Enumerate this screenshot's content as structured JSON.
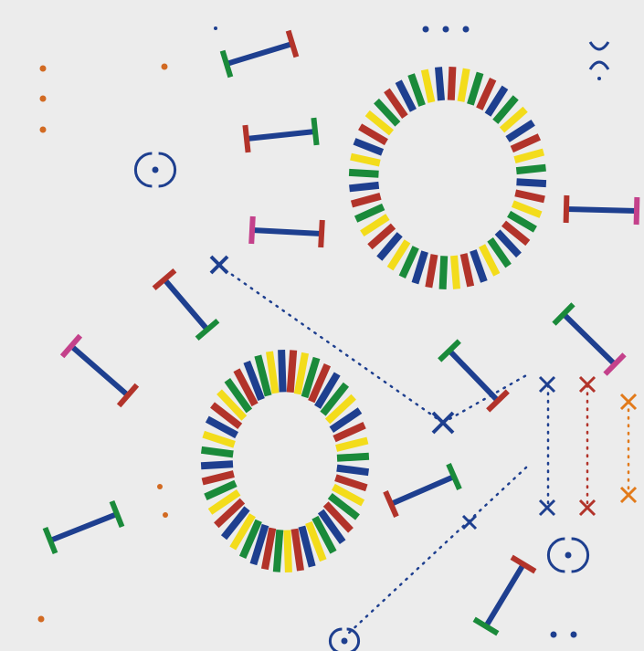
{
  "artwork": {
    "background": "#ececec",
    "colors": {
      "blue": "#1e3f8f",
      "red": "#b2332a",
      "green": "#1a8a3a",
      "orange": "#e27a1a",
      "yellow": "#f3dc1b",
      "magenta": "#c4418b",
      "dot_blue": "#1e3f8f",
      "dot_orange": "#d26a22"
    },
    "ring_palette": [
      "blue",
      "yellow",
      "green",
      "orange",
      "red",
      "blue",
      "yellow",
      "orange"
    ],
    "elements": {
      "rings": 2,
      "i_beams": 13,
      "cross_marks": 8,
      "dotted_links": 5,
      "circle_dot_marks": 3,
      "dot_groups": 7
    }
  }
}
